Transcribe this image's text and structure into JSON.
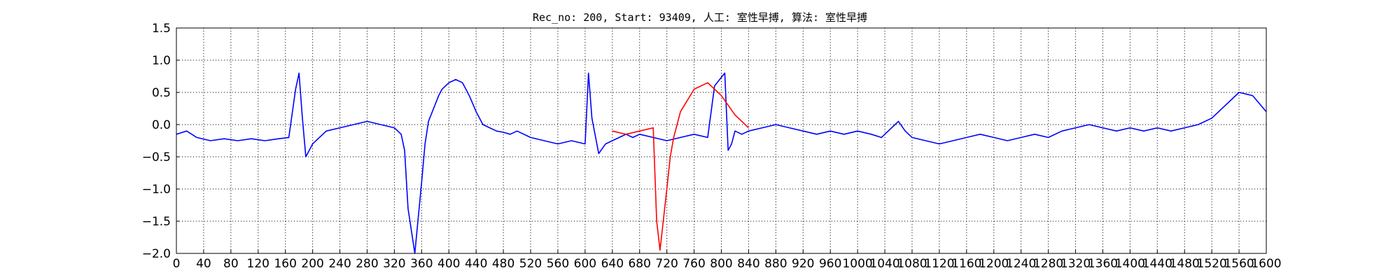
{
  "chart_data": {
    "type": "line",
    "title": "Rec_no: 200, Start: 93409, 人工: 室性早搏, 算法: 室性早搏",
    "xlabel": "",
    "ylabel": "",
    "xlim": [
      0,
      1600
    ],
    "ylim": [
      -2.0,
      1.5
    ],
    "grid": true,
    "y_ticks": [
      1.5,
      1.0,
      0.5,
      0.0,
      -0.5,
      -1.0,
      -1.5,
      -2.0
    ],
    "y_tick_labels": [
      "1.5",
      "1.0",
      "0.5",
      "0.0",
      "−0.5",
      "−1.0",
      "−1.5",
      "−2.0"
    ],
    "x_ticks": [
      0,
      40,
      80,
      120,
      160,
      200,
      240,
      280,
      320,
      360,
      400,
      440,
      480,
      520,
      560,
      600,
      640,
      680,
      720,
      760,
      800,
      840,
      880,
      920,
      960,
      1000,
      1040,
      1080,
      1120,
      1160,
      1200,
      1240,
      1280,
      1320,
      1360,
      1400,
      1440,
      1480,
      1520,
      1560,
      1600
    ],
    "x_tick_labels": [
      "0",
      "40",
      "80",
      "120",
      "160",
      "200",
      "240",
      "280",
      "320",
      "360",
      "400",
      "440",
      "480",
      "520",
      "560",
      "600",
      "640",
      "680",
      "720",
      "760",
      "800",
      "840",
      "880",
      "920",
      "960",
      "1000",
      "1040",
      "1080",
      "1120",
      "1160",
      "1200",
      "1240",
      "1280",
      "1320",
      "1360",
      "1400",
      "1440",
      "1480",
      "1520",
      "1560",
      "1600"
    ],
    "series": [
      {
        "color": "#0000ff",
        "x": [
          0,
          15,
          30,
          50,
          70,
          90,
          110,
          130,
          150,
          165,
          175,
          180,
          185,
          190,
          200,
          220,
          240,
          260,
          280,
          300,
          320,
          330,
          335,
          340,
          350,
          360,
          365,
          370,
          385,
          390,
          400,
          410,
          420,
          430,
          440,
          450,
          460,
          470,
          480,
          490,
          500,
          520,
          540,
          560,
          580,
          600,
          605,
          610,
          620,
          630,
          640,
          650,
          660,
          670,
          680,
          700,
          720,
          740,
          760,
          780,
          790,
          805,
          810,
          815,
          820,
          830,
          840,
          860,
          880,
          900,
          920,
          940,
          960,
          980,
          1000,
          1020,
          1035,
          1045,
          1050,
          1055,
          1060,
          1070,
          1080,
          1100,
          1120,
          1140,
          1160,
          1180,
          1200,
          1220,
          1240,
          1260,
          1280,
          1300,
          1320,
          1340,
          1360,
          1380,
          1400,
          1420,
          1440,
          1460,
          1480,
          1500,
          1520,
          1540,
          1560,
          1580,
          1600
        ],
        "y": [
          -0.15,
          -0.1,
          -0.2,
          -0.25,
          -0.22,
          -0.25,
          -0.22,
          -0.25,
          -0.22,
          -0.2,
          0.55,
          0.8,
          0.1,
          -0.5,
          -0.3,
          -0.1,
          -0.05,
          0.0,
          0.05,
          0.0,
          -0.05,
          -0.15,
          -0.4,
          -1.3,
          -2.0,
          -0.9,
          -0.3,
          0.05,
          0.45,
          0.55,
          0.65,
          0.7,
          0.65,
          0.45,
          0.2,
          0.0,
          -0.05,
          -0.1,
          -0.12,
          -0.15,
          -0.1,
          -0.2,
          -0.25,
          -0.3,
          -0.25,
          -0.3,
          0.8,
          0.1,
          -0.45,
          -0.3,
          -0.25,
          -0.2,
          -0.15,
          -0.2,
          -0.15,
          -0.2,
          -0.25,
          -0.2,
          -0.15,
          -0.2,
          0.6,
          0.8,
          -0.4,
          -0.3,
          -0.1,
          -0.15,
          -0.1,
          -0.05,
          0.0,
          -0.05,
          -0.1,
          -0.15,
          -0.1,
          -0.15,
          -0.1,
          -0.15,
          -0.2,
          -0.1,
          -0.05,
          0.0,
          0.05,
          -0.1,
          -0.2,
          -0.25,
          -0.3,
          -0.25,
          -0.2,
          -0.15,
          -0.2,
          -0.25,
          -0.2,
          -0.15,
          -0.2,
          -0.1,
          -0.05,
          0.0,
          -0.05,
          -0.1,
          -0.05,
          -0.1,
          -0.05,
          -0.1,
          -0.05,
          0.0,
          0.1,
          0.3,
          0.5,
          0.45,
          0.2
        ]
      },
      {
        "color": "#ff0000",
        "x": [
          640,
          660,
          680,
          700,
          705,
          710,
          720,
          725,
          730,
          740,
          760,
          780,
          800,
          820,
          840
        ],
        "y": [
          -0.1,
          -0.15,
          -0.1,
          -0.05,
          -1.5,
          -1.95,
          -1.0,
          -0.5,
          -0.2,
          0.2,
          0.55,
          0.65,
          0.45,
          0.15,
          -0.05
        ]
      }
    ]
  }
}
